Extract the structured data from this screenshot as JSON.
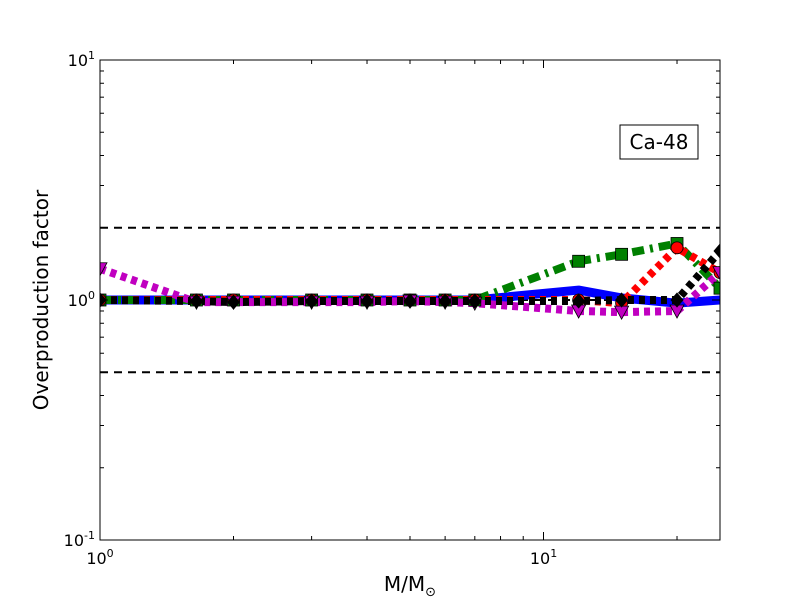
{
  "chart_data": {
    "type": "line",
    "annotation": "Ca-48",
    "ylabel": "Overproduction factor",
    "xlabel": {
      "main": "M/M",
      "subscript": "⊙"
    },
    "xscale": "log",
    "yscale": "log",
    "xlim": [
      1,
      25
    ],
    "ylim": [
      0.1,
      10
    ],
    "x_ticks": [
      {
        "value": 1,
        "base": "10",
        "exp": "0"
      },
      {
        "value": 10,
        "base": "10",
        "exp": "1"
      }
    ],
    "y_ticks": [
      {
        "value": 0.1,
        "base": "10",
        "exp": "-1"
      },
      {
        "value": 1,
        "base": "10",
        "exp": "0"
      },
      {
        "value": 10,
        "base": "10",
        "exp": "1"
      }
    ],
    "reference_lines": [
      0.5,
      1.0,
      2.0
    ],
    "series": [
      {
        "color": "#0000ff",
        "style": "solid",
        "marker": "none",
        "x": [
          1,
          1.65,
          2,
          3,
          4,
          5,
          6,
          7,
          12,
          15,
          20,
          25
        ],
        "y": [
          1.0,
          1.0,
          1.0,
          1.0,
          1.0,
          1.0,
          1.0,
          1.0,
          1.1,
          1.02,
          0.97,
          1.0
        ]
      },
      {
        "color": "#008000",
        "style": "dashdot",
        "marker": "square",
        "x": [
          1,
          1.65,
          2,
          3,
          4,
          5,
          6,
          7,
          12,
          15,
          20,
          25
        ],
        "y": [
          1.0,
          1.0,
          1.0,
          1.0,
          1.0,
          1.0,
          1.0,
          1.0,
          1.45,
          1.55,
          1.72,
          1.12
        ]
      },
      {
        "color": "#ff0000",
        "style": "dotted",
        "marker": "circle",
        "x": [
          1,
          1.65,
          2,
          3,
          4,
          5,
          6,
          7,
          12,
          15,
          20,
          25
        ],
        "y": [
          1.0,
          1.0,
          1.0,
          1.0,
          1.0,
          1.0,
          1.0,
          1.0,
          1.0,
          0.97,
          1.65,
          1.3
        ]
      },
      {
        "color": "#c000c0",
        "style": "dotted",
        "marker": "triangle-down",
        "x": [
          1,
          1.65,
          2,
          3,
          4,
          5,
          6,
          7,
          12,
          15,
          20,
          25
        ],
        "y": [
          1.35,
          0.98,
          0.98,
          0.98,
          0.98,
          0.99,
          0.98,
          0.97,
          0.9,
          0.89,
          0.9,
          1.3
        ]
      },
      {
        "color": "#000000",
        "style": "dotted",
        "marker": "diamond",
        "x": [
          1,
          1.65,
          2,
          3,
          4,
          5,
          6,
          7,
          12,
          15,
          20,
          25
        ],
        "y": [
          1.0,
          0.99,
          0.98,
          0.99,
          0.99,
          0.99,
          0.99,
          0.99,
          0.99,
          1.0,
          1.0,
          1.6
        ]
      }
    ]
  }
}
